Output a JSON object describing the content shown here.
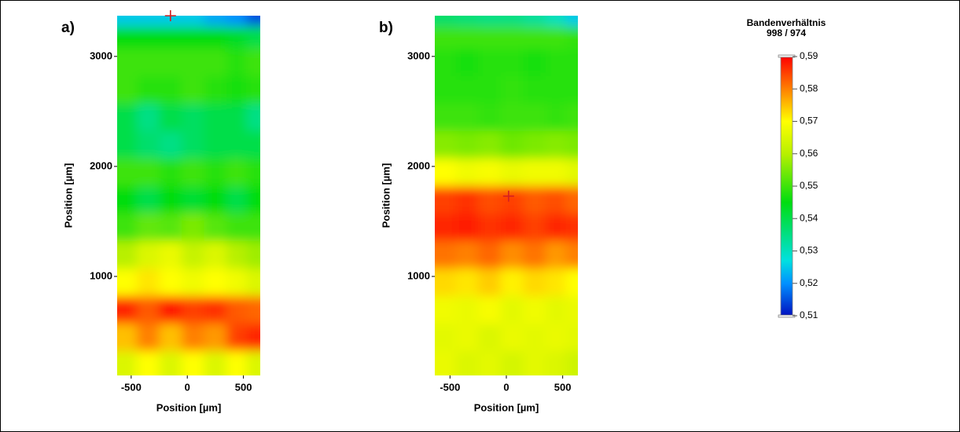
{
  "chart_data": [
    {
      "type": "heatmap",
      "panel_label": "a)",
      "xlabel": "Position [µm]",
      "ylabel": "Position [µm]",
      "xlim": [
        -625,
        650
      ],
      "ylim": [
        100,
        3370
      ],
      "xticks": [
        -500,
        0,
        500
      ],
      "yticks": [
        1000,
        2000,
        3000
      ],
      "x": [
        -550,
        -350,
        -150,
        50,
        250,
        450,
        600
      ],
      "y": [
        200,
        450,
        700,
        950,
        1200,
        1450,
        1700,
        1950,
        2200,
        2450,
        2700,
        2950,
        3200,
        3350
      ],
      "z": [
        [
          0.565,
          0.57,
          0.565,
          0.57,
          0.565,
          0.57,
          0.565
        ],
        [
          0.575,
          0.58,
          0.575,
          0.58,
          0.578,
          0.585,
          0.587
        ],
        [
          0.587,
          0.583,
          0.588,
          0.585,
          0.586,
          0.583,
          0.582
        ],
        [
          0.57,
          0.572,
          0.57,
          0.568,
          0.57,
          0.568,
          0.565
        ],
        [
          0.56,
          0.565,
          0.567,
          0.562,
          0.565,
          0.56,
          0.558
        ],
        [
          0.55,
          0.553,
          0.552,
          0.555,
          0.552,
          0.55,
          0.55
        ],
        [
          0.545,
          0.54,
          0.545,
          0.542,
          0.545,
          0.54,
          0.545
        ],
        [
          0.55,
          0.55,
          0.548,
          0.55,
          0.548,
          0.55,
          0.548
        ],
        [
          0.54,
          0.537,
          0.535,
          0.538,
          0.54,
          0.54,
          0.54
        ],
        [
          0.54,
          0.535,
          0.54,
          0.538,
          0.54,
          0.54,
          0.535
        ],
        [
          0.55,
          0.548,
          0.548,
          0.55,
          0.548,
          0.547,
          0.548
        ],
        [
          0.55,
          0.55,
          0.55,
          0.55,
          0.55,
          0.548,
          0.55
        ],
        [
          0.545,
          0.545,
          0.545,
          0.545,
          0.545,
          0.543,
          0.54
        ],
        [
          0.525,
          0.525,
          0.525,
          0.525,
          0.522,
          0.52,
          0.515
        ]
      ],
      "marker": {
        "x": -150,
        "y": 3370,
        "color": "#d62020"
      }
    },
    {
      "type": "heatmap",
      "panel_label": "b)",
      "xlabel": "Position [µm]",
      "ylabel": "Position [µm]",
      "xlim": [
        -635,
        635
      ],
      "ylim": [
        100,
        3370
      ],
      "xticks": [
        -500,
        0,
        500
      ],
      "yticks": [
        1000,
        2000,
        3000
      ],
      "x": [
        -550,
        -350,
        -150,
        50,
        250,
        450,
        600
      ],
      "y": [
        200,
        450,
        700,
        950,
        1200,
        1450,
        1700,
        1950,
        2200,
        2450,
        2700,
        2950,
        3200,
        3350
      ],
      "z": [
        [
          0.567,
          0.565,
          0.566,
          0.564,
          0.566,
          0.565,
          0.563
        ],
        [
          0.566,
          0.567,
          0.565,
          0.567,
          0.566,
          0.567,
          0.566
        ],
        [
          0.568,
          0.567,
          0.569,
          0.566,
          0.568,
          0.566,
          0.567
        ],
        [
          0.573,
          0.572,
          0.574,
          0.571,
          0.573,
          0.572,
          0.57
        ],
        [
          0.581,
          0.58,
          0.582,
          0.579,
          0.581,
          0.578,
          0.58
        ],
        [
          0.587,
          0.588,
          0.586,
          0.587,
          0.585,
          0.587,
          0.586
        ],
        [
          0.585,
          0.586,
          0.584,
          0.585,
          0.583,
          0.584,
          0.582
        ],
        [
          0.57,
          0.568,
          0.569,
          0.567,
          0.568,
          0.568,
          0.566
        ],
        [
          0.556,
          0.555,
          0.556,
          0.554,
          0.555,
          0.556,
          0.555
        ],
        [
          0.55,
          0.55,
          0.549,
          0.55,
          0.55,
          0.549,
          0.55
        ],
        [
          0.548,
          0.548,
          0.548,
          0.549,
          0.548,
          0.548,
          0.548
        ],
        [
          0.548,
          0.547,
          0.548,
          0.548,
          0.547,
          0.548,
          0.548
        ],
        [
          0.55,
          0.55,
          0.55,
          0.55,
          0.55,
          0.55,
          0.549
        ],
        [
          0.537,
          0.536,
          0.535,
          0.535,
          0.533,
          0.53,
          0.525
        ]
      ],
      "marker": {
        "x": 20,
        "y": 1730,
        "color": "#d62020"
      }
    }
  ],
  "colorbar": {
    "title": [
      "Bandenverhältnis",
      "998 / 974"
    ],
    "zlim": [
      0.51,
      0.59
    ],
    "ticks": [
      {
        "value": 0.59,
        "label": "0,59"
      },
      {
        "value": 0.58,
        "label": "0,58"
      },
      {
        "value": 0.57,
        "label": "0,57"
      },
      {
        "value": 0.56,
        "label": "0,56"
      },
      {
        "value": 0.55,
        "label": "0,55"
      },
      {
        "value": 0.54,
        "label": "0,54"
      },
      {
        "value": 0.53,
        "label": "0,53"
      },
      {
        "value": 0.52,
        "label": "0,52"
      },
      {
        "value": 0.51,
        "label": "0,51"
      }
    ],
    "stops": [
      {
        "value": 0.51,
        "color": "#0010c0"
      },
      {
        "value": 0.52,
        "color": "#0090ff"
      },
      {
        "value": 0.527,
        "color": "#00e0e0"
      },
      {
        "value": 0.545,
        "color": "#00dd10"
      },
      {
        "value": 0.56,
        "color": "#b8f000"
      },
      {
        "value": 0.57,
        "color": "#ffff00"
      },
      {
        "value": 0.58,
        "color": "#ff8000"
      },
      {
        "value": 0.59,
        "color": "#ff0000"
      }
    ]
  }
}
